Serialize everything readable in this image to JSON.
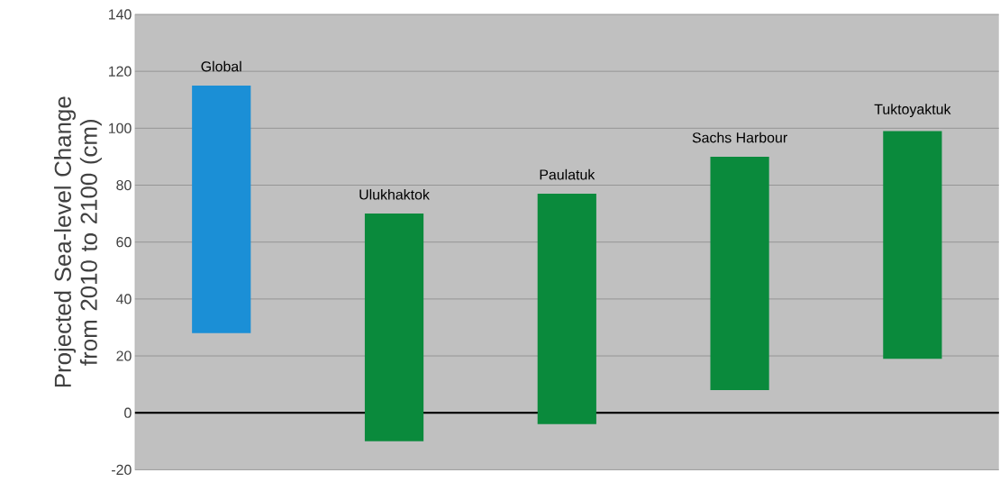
{
  "chart_data": {
    "type": "bar",
    "ylabel": "Projected Sea-level Change from 2010 to 2100 (cm)",
    "categories": [
      "Global",
      "Ulukhaktok",
      "Paulatuk",
      "Sachs Harbour",
      "Tuktoyaktuk"
    ],
    "base": [
      28,
      -10,
      -4,
      8,
      19
    ],
    "values": [
      87,
      80,
      81,
      82,
      80
    ],
    "colors": [
      "#1b8fd6",
      "#0a8a3c",
      "#0a8a3c",
      "#0a8a3c",
      "#0a8a3c"
    ],
    "ylim": [
      -20,
      140
    ],
    "yticks": [
      -20,
      0,
      20,
      40,
      60,
      80,
      100,
      120,
      140
    ],
    "grid": "y",
    "tick_labels": "y",
    "ref_lines": [
      {
        "axis": "y",
        "value": 0,
        "color": "#000000"
      }
    ]
  }
}
